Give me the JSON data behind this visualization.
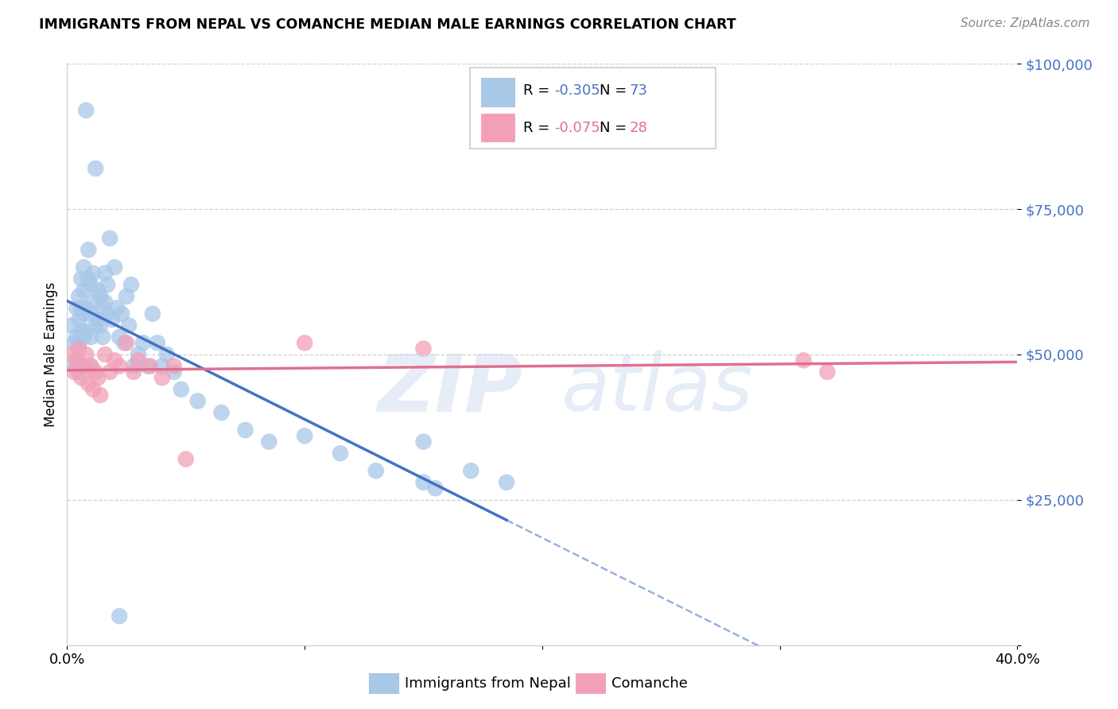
{
  "title": "IMMIGRANTS FROM NEPAL VS COMANCHE MEDIAN MALE EARNINGS CORRELATION CHART",
  "source": "Source: ZipAtlas.com",
  "ylabel": "Median Male Earnings",
  "xlim": [
    0.0,
    0.4
  ],
  "ylim": [
    0,
    100000
  ],
  "yticks": [
    0,
    25000,
    50000,
    75000,
    100000
  ],
  "ytick_labels": [
    "",
    "$25,000",
    "$50,000",
    "$75,000",
    "$100,000"
  ],
  "xtick_labels": [
    "0.0%",
    "",
    "",
    "",
    "40.0%"
  ],
  "background_color": "#ffffff",
  "grid_color": "#d0d0d0",
  "nepal_color": "#a8c8e8",
  "comanche_color": "#f2a0b8",
  "nepal_line_color": "#4472c4",
  "comanche_line_color": "#e07090",
  "nepal_R": -0.305,
  "nepal_N": 73,
  "comanche_R": -0.075,
  "comanche_N": 28,
  "nepal_x": [
    0.002,
    0.003,
    0.003,
    0.004,
    0.004,
    0.004,
    0.005,
    0.005,
    0.005,
    0.005,
    0.006,
    0.006,
    0.006,
    0.007,
    0.007,
    0.007,
    0.007,
    0.008,
    0.008,
    0.008,
    0.009,
    0.009,
    0.01,
    0.01,
    0.01,
    0.01,
    0.011,
    0.011,
    0.012,
    0.012,
    0.013,
    0.013,
    0.014,
    0.014,
    0.015,
    0.015,
    0.016,
    0.016,
    0.017,
    0.017,
    0.018,
    0.019,
    0.02,
    0.021,
    0.022,
    0.023,
    0.024,
    0.025,
    0.026,
    0.027,
    0.028,
    0.03,
    0.032,
    0.034,
    0.036,
    0.038,
    0.04,
    0.042,
    0.045,
    0.048,
    0.055,
    0.065,
    0.075,
    0.085,
    0.1,
    0.115,
    0.13,
    0.15,
    0.155,
    0.17,
    0.185,
    0.022,
    0.15
  ],
  "nepal_y": [
    55000,
    52000,
    48000,
    58000,
    53000,
    49000,
    60000,
    56000,
    52000,
    47000,
    63000,
    58000,
    54000,
    65000,
    61000,
    57000,
    53000,
    92000,
    58000,
    54000,
    68000,
    63000,
    62000,
    57000,
    53000,
    48000,
    64000,
    59000,
    82000,
    55000,
    61000,
    56000,
    60000,
    55000,
    58000,
    53000,
    64000,
    59000,
    62000,
    57000,
    70000,
    56000,
    65000,
    58000,
    53000,
    57000,
    52000,
    60000,
    55000,
    62000,
    48000,
    50000,
    52000,
    48000,
    57000,
    52000,
    48000,
    50000,
    47000,
    44000,
    42000,
    40000,
    37000,
    35000,
    36000,
    33000,
    30000,
    28000,
    27000,
    30000,
    28000,
    5000,
    35000
  ],
  "comanche_x": [
    0.002,
    0.003,
    0.004,
    0.005,
    0.006,
    0.007,
    0.008,
    0.009,
    0.01,
    0.011,
    0.012,
    0.013,
    0.014,
    0.016,
    0.018,
    0.02,
    0.022,
    0.025,
    0.028,
    0.03,
    0.035,
    0.04,
    0.045,
    0.05,
    0.1,
    0.15,
    0.31,
    0.32
  ],
  "comanche_y": [
    50000,
    47000,
    49000,
    51000,
    46000,
    48000,
    50000,
    45000,
    48000,
    44000,
    47000,
    46000,
    43000,
    50000,
    47000,
    49000,
    48000,
    52000,
    47000,
    49000,
    48000,
    46000,
    48000,
    32000,
    52000,
    51000,
    49000,
    47000
  ]
}
